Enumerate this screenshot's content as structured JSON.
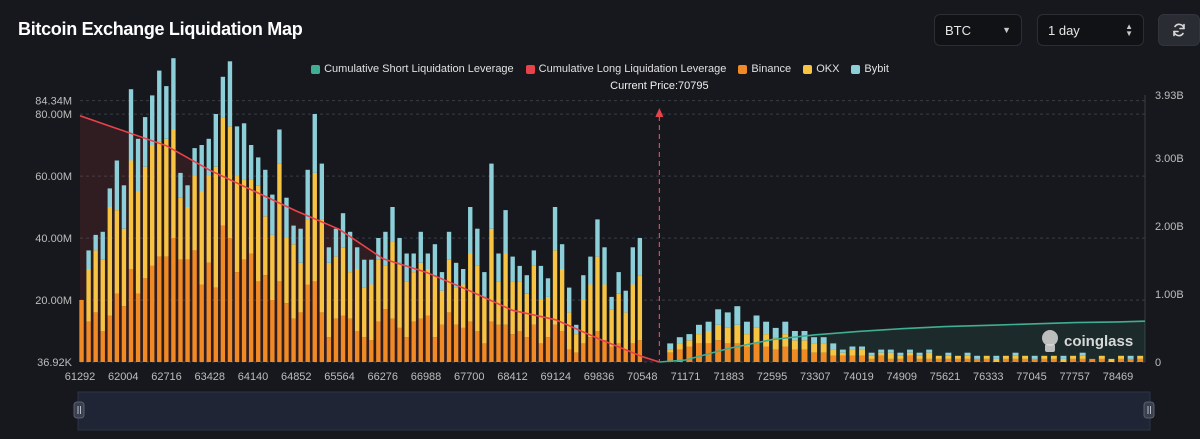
{
  "header": {
    "title": "Bitcoin Exchange Liquidation Map",
    "coin_value": "BTC",
    "range_value": "1 day",
    "refresh_icon": "refresh-icon"
  },
  "legend": [
    {
      "label": "Cumulative Short Liquidation Leverage",
      "color": "#3fae93"
    },
    {
      "label": "Cumulative Long Liquidation Leverage",
      "color": "#e8424a"
    },
    {
      "label": "Binance",
      "color": "#f08a24"
    },
    {
      "label": "OKX",
      "color": "#f6c343"
    },
    {
      "label": "Bybit",
      "color": "#8ccfd8"
    }
  ],
  "watermark": "coinglass",
  "chart_data": {
    "type": "bar",
    "title": "Bitcoin Exchange Liquidation Map",
    "price_range": [
      61292,
      79100
    ],
    "y_left": {
      "min": 36920,
      "max": 84340000,
      "ticks": [
        {
          "value": 36920,
          "label": "36.92K"
        },
        {
          "value": 20000000,
          "label": "20.00M"
        },
        {
          "value": 40000000,
          "label": "40.00M"
        },
        {
          "value": 60000000,
          "label": "60.00M"
        },
        {
          "value": 80000000,
          "label": "80.00M"
        },
        {
          "value": 84340000,
          "label": "84.34M"
        }
      ]
    },
    "y_right": {
      "min": 0,
      "max": 3930000000,
      "ticks": [
        {
          "value": 0,
          "label": "0"
        },
        {
          "value": 1000000000,
          "label": "1.00B"
        },
        {
          "value": 2000000000,
          "label": "2.00B"
        },
        {
          "value": 3000000000,
          "label": "3.00B"
        },
        {
          "value": 3930000000,
          "label": "3.93B"
        }
      ]
    },
    "x_ticks": [
      "61292",
      "62004",
      "62716",
      "63428",
      "64140",
      "64852",
      "65564",
      "66276",
      "66988",
      "67700",
      "68412",
      "69124",
      "69836",
      "70548",
      "71171",
      "71883",
      "72595",
      "73307",
      "74019",
      "74909",
      "75621",
      "76333",
      "77045",
      "77757",
      "78469"
    ],
    "current_price": {
      "value": 70795,
      "label": "Current Price:70795"
    },
    "long_cumulative": [
      [
        61292,
        3620000000.0
      ],
      [
        62004,
        3400000000.0
      ],
      [
        62716,
        3180000000.0
      ],
      [
        63428,
        2820000000.0
      ],
      [
        64140,
        2520000000.0
      ],
      [
        64852,
        2220000000.0
      ],
      [
        65564,
        1950000000.0
      ],
      [
        66276,
        1520000000.0
      ],
      [
        66988,
        1320000000.0
      ],
      [
        67700,
        1050000000.0
      ],
      [
        68412,
        760000000.0
      ],
      [
        69124,
        620000000.0
      ],
      [
        69836,
        340000000.0
      ],
      [
        70548,
        80000000.0
      ],
      [
        70795,
        0.0
      ]
    ],
    "short_cumulative": [
      [
        70795,
        0.0
      ],
      [
        71171,
        30000000.0
      ],
      [
        71883,
        200000000.0
      ],
      [
        72595,
        330000000.0
      ],
      [
        73307,
        400000000.0
      ],
      [
        74019,
        450000000.0
      ],
      [
        74909,
        490000000.0
      ],
      [
        75621,
        520000000.0
      ],
      [
        76333,
        540000000.0
      ],
      [
        77045,
        560000000.0
      ],
      [
        77757,
        580000000.0
      ],
      [
        78469,
        590000000.0
      ],
      [
        79100,
        600000000.0
      ]
    ],
    "bars_left": [
      [
        20,
        0,
        0
      ],
      [
        13,
        17,
        6
      ],
      [
        16,
        20,
        5
      ],
      [
        10,
        23,
        9
      ],
      [
        15,
        35,
        6
      ],
      [
        22,
        27,
        16
      ],
      [
        18,
        25,
        14
      ],
      [
        30,
        35,
        23
      ],
      [
        22,
        33,
        17
      ],
      [
        27,
        36,
        16
      ],
      [
        31,
        39,
        16
      ],
      [
        34,
        37,
        23
      ],
      [
        34,
        38,
        17
      ],
      [
        40,
        35,
        23
      ],
      [
        33,
        20,
        8
      ],
      [
        33,
        17,
        7
      ],
      [
        36,
        24,
        9
      ],
      [
        25,
        30,
        15
      ],
      [
        32,
        28,
        12
      ],
      [
        24,
        39,
        17
      ],
      [
        44,
        35,
        13
      ],
      [
        40,
        36,
        21
      ],
      [
        29,
        31,
        16
      ],
      [
        33,
        26,
        18
      ],
      [
        35,
        24,
        11
      ],
      [
        26,
        31,
        9
      ],
      [
        28,
        19,
        15
      ],
      [
        20,
        21,
        13
      ],
      [
        26,
        38,
        11
      ],
      [
        19,
        21,
        13
      ],
      [
        14,
        24,
        6
      ],
      [
        16,
        16,
        11
      ],
      [
        25,
        21,
        16
      ],
      [
        26,
        35,
        19
      ],
      [
        16,
        30,
        18
      ],
      [
        8,
        24,
        5
      ],
      [
        14,
        20,
        9
      ],
      [
        15,
        22,
        11
      ],
      [
        14,
        15,
        13
      ],
      [
        10,
        20,
        7
      ],
      [
        8,
        16,
        9
      ],
      [
        7,
        18,
        8
      ],
      [
        13,
        20,
        7
      ],
      [
        17,
        14,
        11
      ],
      [
        14,
        25,
        11
      ],
      [
        11,
        21,
        8
      ],
      [
        8,
        18,
        9
      ],
      [
        13,
        16,
        6
      ],
      [
        14,
        18,
        10
      ],
      [
        15,
        15,
        5
      ],
      [
        8,
        20,
        10
      ],
      [
        12,
        11,
        6
      ],
      [
        16,
        17,
        9
      ],
      [
        12,
        12,
        8
      ],
      [
        11,
        14,
        5
      ],
      [
        13,
        22,
        15
      ],
      [
        10,
        21,
        12
      ],
      [
        6,
        15,
        8
      ],
      [
        13,
        30,
        21
      ],
      [
        12,
        14,
        9
      ],
      [
        12,
        23,
        14
      ],
      [
        9,
        17,
        8
      ],
      [
        10,
        16,
        5
      ],
      [
        8,
        14,
        6
      ],
      [
        12,
        19,
        5
      ],
      [
        6,
        14,
        11
      ],
      [
        8,
        13,
        6
      ],
      [
        12,
        24,
        14
      ],
      [
        10,
        20,
        8
      ],
      [
        4,
        12,
        8
      ],
      [
        3,
        6,
        3
      ],
      [
        6,
        14,
        8
      ],
      [
        8,
        17,
        9
      ],
      [
        10,
        24,
        12
      ],
      [
        7,
        18,
        12
      ],
      [
        5,
        12,
        4
      ],
      [
        6,
        16,
        7
      ],
      [
        4,
        12,
        7
      ],
      [
        6,
        19,
        12
      ],
      [
        7,
        21,
        12
      ]
    ],
    "bars_right": [
      [
        3,
        1,
        2
      ],
      [
        4,
        2,
        2
      ],
      [
        5,
        2,
        2
      ],
      [
        6,
        3,
        3
      ],
      [
        6,
        4,
        3
      ],
      [
        7,
        5,
        5
      ],
      [
        6,
        5,
        5
      ],
      [
        6,
        6,
        6
      ],
      [
        5,
        4,
        4
      ],
      [
        6,
        5,
        4
      ],
      [
        5,
        4,
        4
      ],
      [
        4,
        4,
        3
      ],
      [
        5,
        4,
        4
      ],
      [
        4,
        3,
        3
      ],
      [
        4,
        3,
        3
      ],
      [
        3,
        3,
        2
      ],
      [
        3,
        3,
        2
      ],
      [
        2,
        2,
        2
      ],
      [
        2,
        1,
        1
      ],
      [
        2,
        2,
        1
      ],
      [
        2,
        2,
        1
      ],
      [
        1,
        1,
        1
      ],
      [
        2,
        1,
        1
      ],
      [
        1,
        2,
        1
      ],
      [
        1,
        1,
        1
      ],
      [
        2,
        1,
        1
      ],
      [
        1,
        1,
        1
      ],
      [
        1,
        2,
        1
      ],
      [
        1,
        1,
        0
      ],
      [
        1,
        1,
        1
      ],
      [
        1,
        1,
        0
      ],
      [
        1,
        1,
        1
      ],
      [
        1,
        0,
        1
      ],
      [
        1,
        1,
        0
      ],
      [
        0,
        1,
        1
      ],
      [
        1,
        1,
        0
      ],
      [
        1,
        1,
        1
      ],
      [
        1,
        1,
        0
      ],
      [
        1,
        0,
        1
      ],
      [
        1,
        1,
        0
      ],
      [
        1,
        1,
        0
      ],
      [
        0,
        1,
        1
      ],
      [
        1,
        1,
        0
      ],
      [
        1,
        1,
        1
      ],
      [
        1,
        0,
        0
      ],
      [
        1,
        1,
        0
      ],
      [
        0,
        1,
        0
      ],
      [
        1,
        1,
        0
      ],
      [
        1,
        0,
        1
      ],
      [
        1,
        1,
        0
      ]
    ]
  }
}
